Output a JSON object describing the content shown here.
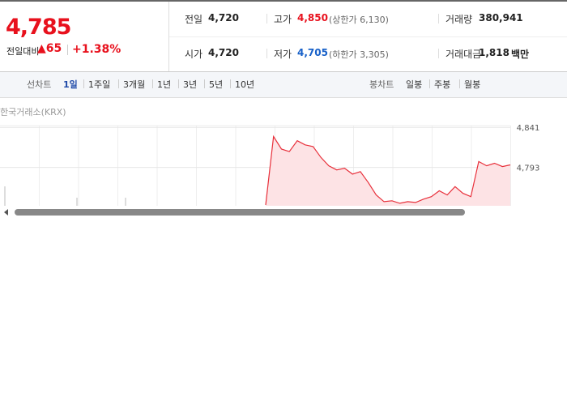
{
  "summary": {
    "price": "4,785",
    "change_label": "전일대비",
    "change": "65",
    "change_rate": "+1.38%"
  },
  "stats": [
    [
      {
        "label": "전일",
        "value": "4,720"
      },
      {
        "label": "고가",
        "value": "4,850",
        "note": "(상한가 6,130)"
      },
      {
        "label": "거래량",
        "value": "380,941"
      }
    ],
    [
      {
        "label": "시가",
        "value": "4,720"
      },
      {
        "label": "저가",
        "value": "4,705",
        "note": "(하한가 3,305)"
      },
      {
        "label": "거래대금",
        "value": "1,818",
        "unit": "백만"
      }
    ]
  ],
  "tabs": {
    "line_label": "선차트",
    "line_tabs": [
      "1일",
      "1주일",
      "3개월",
      "1년",
      "3년",
      "5년",
      "10년"
    ],
    "candle_label": "봉차트",
    "candle_tabs": [
      "일봉",
      "주봉",
      "월봉"
    ]
  },
  "price_chart": {
    "type": "line",
    "source": "한국거래소(KRX)",
    "ylim": [
      4747,
      4848
    ],
    "yticks": [
      {
        "value": 4841,
        "label": "4,841"
      },
      {
        "value": 4793,
        "label": "4,793"
      }
    ],
    "values": [
      4748,
      4830,
      4815,
      4812,
      4825,
      4820,
      4818,
      4805,
      4795,
      4790,
      4792,
      4785,
      4788,
      4775,
      4760,
      4752,
      4753,
      4750,
      4752,
      4751,
      4755,
      4758,
      4765,
      4760,
      4770,
      4762,
      4758,
      4800,
      4795,
      4798,
      4794,
      4796
    ],
    "color": "#e8303b"
  }
}
